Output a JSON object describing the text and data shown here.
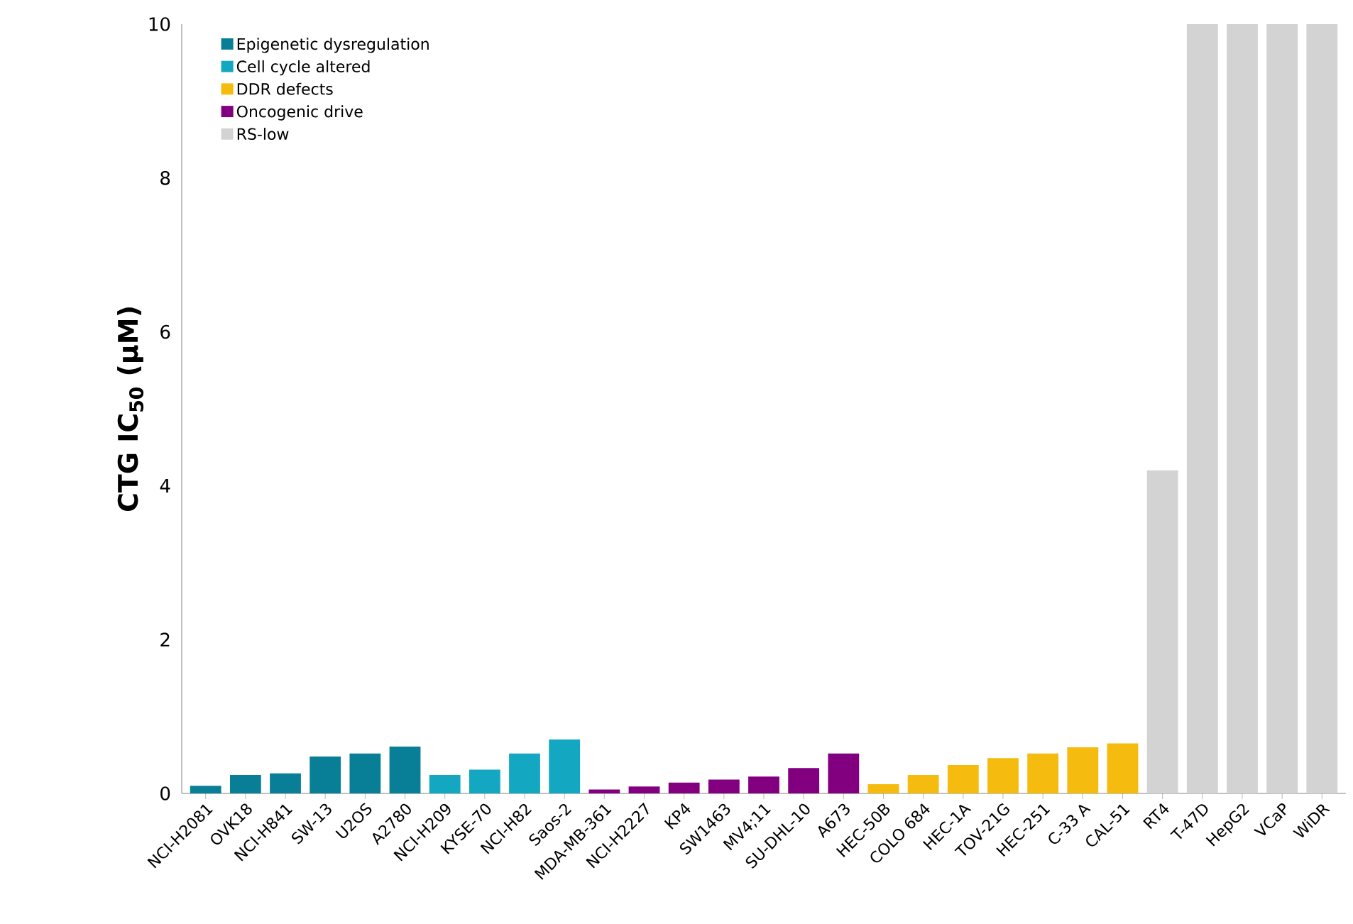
{
  "chart_data": {
    "type": "bar",
    "ylabel": "CTG IC$_{50}$ (µM)",
    "categories": [
      "NCI-H2081",
      "OVK18",
      "NCI-H841",
      "SW-13",
      "U2OS",
      "A2780",
      "NCI-H209",
      "KYSE-70",
      "NCI-H82",
      "Saos-2",
      "MDA-MB-361",
      "NCI-H2227",
      "KP4",
      "SW1463",
      "MV4;11",
      "SU-DHL-10",
      "A673",
      "HEC-50B",
      "COLO 684",
      "HEC-1A",
      "TOV-21G",
      "HEC-251",
      "C-33 A",
      "CAL-51",
      "RT4",
      "T-47D",
      "HepG2",
      "VCaP",
      "WiDR"
    ],
    "series": [
      {
        "name": "Epigenetic dysregulation",
        "color": "#087f97",
        "values": [
          0.1,
          0.24,
          0.26,
          0.48,
          0.52,
          0.61,
          null,
          null,
          null,
          null,
          null,
          null,
          null,
          null,
          null,
          null,
          null,
          null,
          null,
          null,
          null,
          null,
          null,
          null,
          null,
          null,
          null,
          null,
          null
        ]
      },
      {
        "name": "Cell cycle altered",
        "color": "#14a7c1",
        "values": [
          null,
          null,
          null,
          null,
          null,
          null,
          0.24,
          0.31,
          0.52,
          0.7,
          null,
          null,
          null,
          null,
          null,
          null,
          null,
          null,
          null,
          null,
          null,
          null,
          null,
          null,
          null,
          null,
          null,
          null,
          null
        ]
      },
      {
        "name": "DDR defects",
        "color": "#f5bb0f",
        "values": [
          null,
          null,
          null,
          null,
          null,
          null,
          null,
          null,
          null,
          null,
          null,
          null,
          null,
          null,
          null,
          null,
          null,
          0.12,
          0.24,
          0.37,
          0.46,
          0.52,
          0.6,
          0.65,
          null,
          null,
          null,
          null,
          null
        ]
      },
      {
        "name": "Oncogenic drive",
        "color": "#820080",
        "values": [
          null,
          null,
          null,
          null,
          null,
          null,
          null,
          null,
          null,
          null,
          0.05,
          0.09,
          0.14,
          0.18,
          0.22,
          0.33,
          0.52,
          null,
          null,
          null,
          null,
          null,
          null,
          null,
          null,
          null,
          null,
          null,
          null
        ]
      },
      {
        "name": "RS-low",
        "color": "#d3d3d3",
        "values": [
          null,
          null,
          null,
          null,
          null,
          null,
          null,
          null,
          null,
          null,
          null,
          null,
          null,
          null,
          null,
          null,
          null,
          null,
          null,
          null,
          null,
          null,
          null,
          null,
          4.2,
          10,
          10,
          10,
          10
        ]
      }
    ],
    "ylim": [
      0,
      10
    ],
    "yticks": [
      0,
      2,
      4,
      6,
      8,
      10
    ],
    "grid": false,
    "legend": "top left"
  }
}
